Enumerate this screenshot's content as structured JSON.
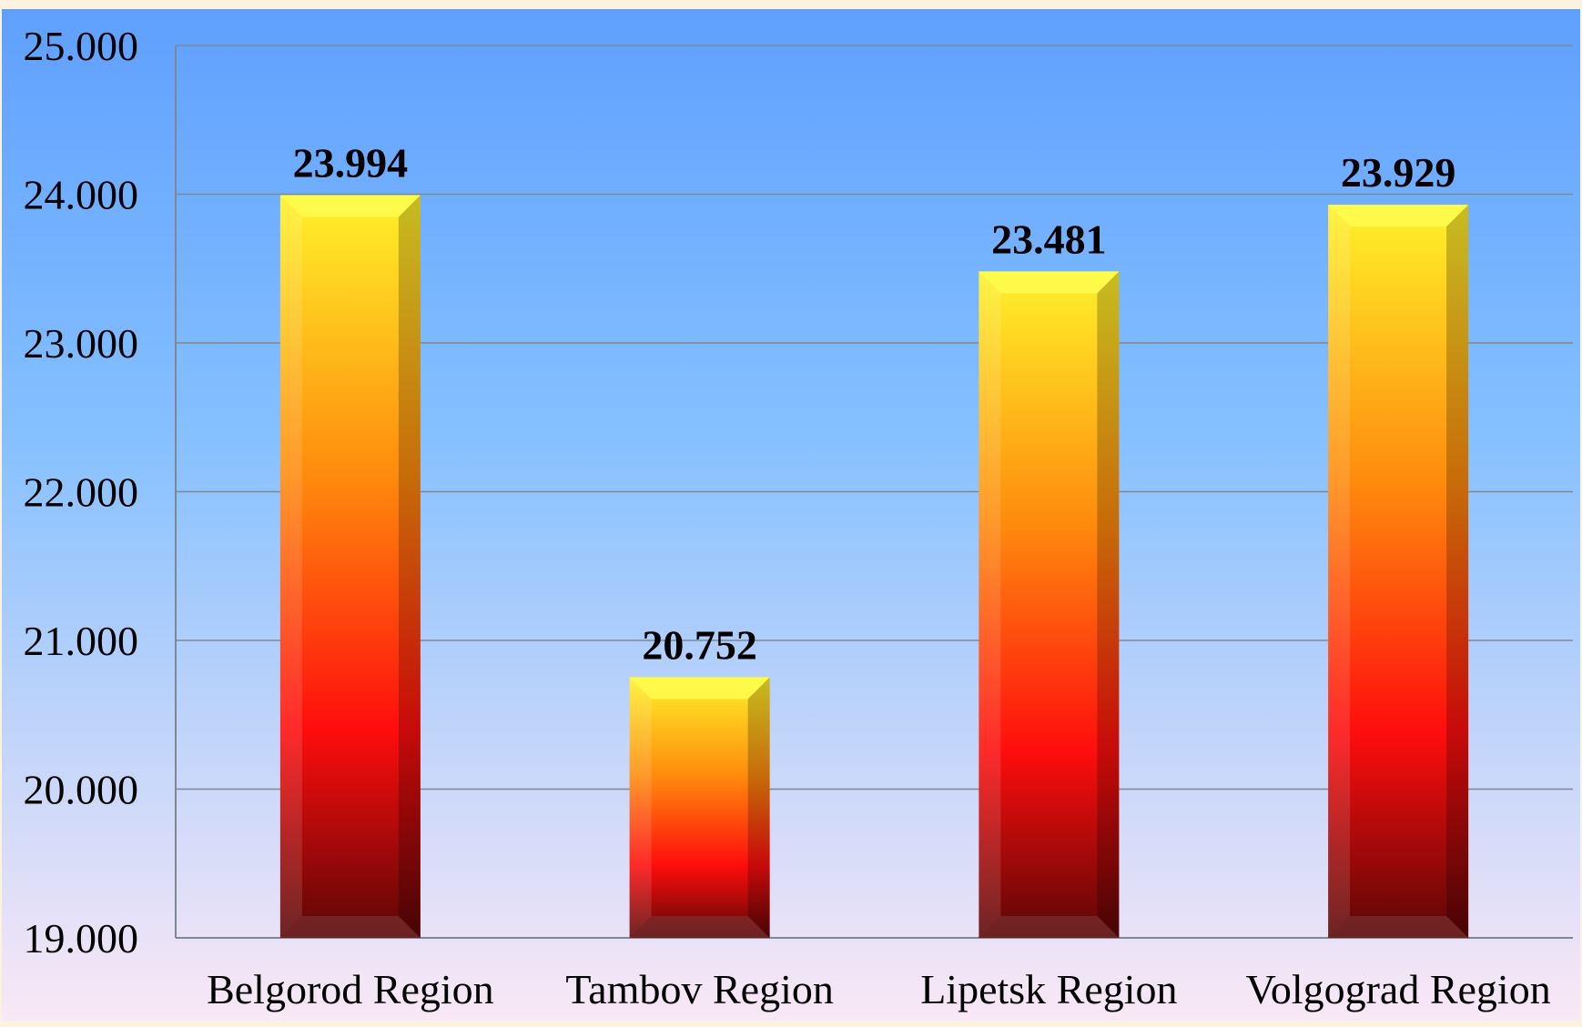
{
  "colors": {
    "page_border": "#fbf3df",
    "background_top": "#5fa0ff",
    "background_middle": "#85c0ff",
    "background_bottom": "#fae8f6",
    "bar_top": "#fff22a",
    "bar_middle_orange": "#ff8a0d",
    "bar_middle_red": "#ff0d0d",
    "bar_bottom": "#5a0606",
    "gridline": "#7f8792"
  },
  "chart_data": {
    "type": "bar",
    "title": "",
    "xlabel": "",
    "ylabel": "",
    "categories": [
      "Belgorod Region",
      "Tambov Region",
      "Lipetsk Region",
      "Volgograd Region"
    ],
    "values": [
      23.994,
      20.752,
      23.481,
      23.929
    ],
    "data_labels": [
      "23.994",
      "20.752",
      "23.481",
      "23.929"
    ],
    "ylim": [
      19,
      25
    ],
    "y_ticks": [
      19,
      20,
      21,
      22,
      23,
      24,
      25
    ],
    "y_tick_labels": [
      "19.000",
      "20.000",
      "21.000",
      "22.000",
      "23.000",
      "24.000",
      "25.000"
    ],
    "grid": true,
    "legend": "none"
  }
}
